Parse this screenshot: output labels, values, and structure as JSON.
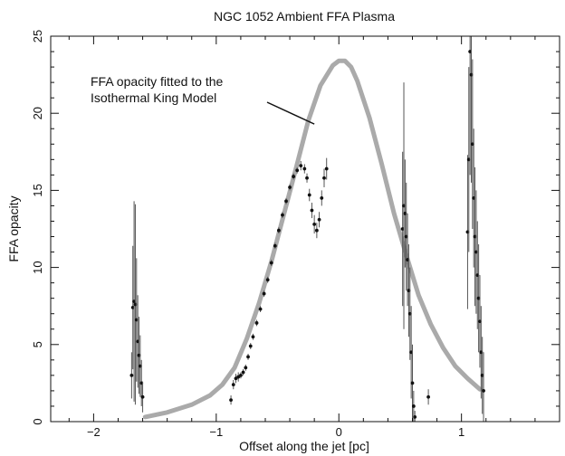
{
  "chart_data": {
    "type": "scatter",
    "title": "NGC 1052 Ambient FFA Plasma",
    "xlabel": "Offset along the jet [pc]",
    "ylabel": "FFA opacity",
    "xlim": [
      -2.35,
      1.8
    ],
    "ylim": [
      0,
      25
    ],
    "xticks": [
      -2,
      -1,
      0,
      1
    ],
    "yticks": [
      0,
      5,
      10,
      15,
      20,
      25
    ],
    "grid": false,
    "colors": {
      "model": "#aaaaaa",
      "data": "#111111"
    },
    "annotation": {
      "lines": [
        "FFA opacity fitted to the",
        "Isothermal King Model"
      ],
      "points_to": [
        -0.2,
        19.3
      ]
    },
    "series": [
      {
        "role": "model",
        "style": "thick gray line",
        "x": [
          -1.58,
          -1.4,
          -1.2,
          -1.05,
          -0.95,
          -0.85,
          -0.75,
          -0.65,
          -0.55,
          -0.45,
          -0.35,
          -0.25,
          -0.15,
          -0.05,
          0.0,
          0.05,
          0.1,
          0.15,
          0.25,
          0.35,
          0.45,
          0.55,
          0.65,
          0.75,
          0.85,
          0.95,
          1.05,
          1.15
        ],
        "values": [
          0.3,
          0.6,
          1.1,
          1.7,
          2.4,
          3.5,
          5.4,
          7.7,
          10.4,
          13.4,
          16.4,
          19.5,
          21.8,
          23.1,
          23.4,
          23.4,
          23.0,
          22.1,
          19.7,
          16.7,
          13.5,
          10.8,
          8.2,
          6.3,
          4.8,
          3.6,
          2.8,
          2.1
        ]
      },
      {
        "role": "data",
        "style": "points with error bars",
        "x": [
          -1.69,
          -1.68,
          -1.67,
          -1.66,
          -1.65,
          -1.64,
          -1.63,
          -1.62,
          -1.61,
          -1.6,
          -0.88,
          -0.86,
          -0.84,
          -0.82,
          -0.8,
          -0.78,
          -0.76,
          -0.74,
          -0.72,
          -0.7,
          -0.67,
          -0.64,
          -0.61,
          -0.58,
          -0.55,
          -0.52,
          -0.49,
          -0.46,
          -0.43,
          -0.4,
          -0.37,
          -0.34,
          -0.31,
          -0.28,
          -0.26,
          -0.24,
          -0.22,
          -0.2,
          -0.18,
          -0.16,
          -0.14,
          -0.12,
          -0.1,
          0.52,
          0.53,
          0.54,
          0.55,
          0.56,
          0.57,
          0.58,
          0.59,
          0.6,
          0.61,
          0.62,
          0.73,
          1.05,
          1.06,
          1.07,
          1.08,
          1.09,
          1.1,
          1.11,
          1.12,
          1.13,
          1.14,
          1.15,
          1.16,
          1.17,
          1.18
        ],
        "values": [
          3.0,
          7.4,
          7.8,
          7.6,
          6.6,
          5.2,
          4.3,
          3.6,
          2.5,
          1.6,
          1.4,
          2.4,
          2.8,
          2.9,
          3.0,
          3.2,
          3.5,
          4.2,
          4.9,
          5.5,
          6.4,
          7.3,
          8.3,
          9.2,
          10.3,
          11.4,
          12.4,
          13.4,
          14.3,
          15.2,
          15.9,
          16.3,
          16.6,
          16.4,
          15.8,
          14.7,
          13.7,
          12.8,
          12.4,
          13.1,
          14.5,
          15.8,
          16.4,
          12.5,
          14.0,
          13.5,
          12.0,
          10.5,
          8.5,
          7.0,
          4.5,
          2.5,
          1.0,
          0.3,
          1.6,
          12.3,
          17.0,
          24.0,
          22.5,
          18.0,
          14.5,
          12.0,
          11.0,
          9.5,
          8.0,
          6.5,
          4.5,
          3.0,
          2.0
        ],
        "error": [
          1.5,
          4.0,
          6.5,
          6.5,
          4.0,
          3.0,
          2.5,
          2.0,
          1.5,
          1.0,
          0.3,
          0.3,
          0.3,
          0.3,
          0.2,
          0.2,
          0.2,
          0.2,
          0.2,
          0.2,
          0.2,
          0.2,
          0.2,
          0.2,
          0.2,
          0.2,
          0.2,
          0.2,
          0.2,
          0.2,
          0.2,
          0.2,
          0.3,
          0.3,
          0.3,
          0.4,
          0.5,
          0.6,
          0.5,
          0.5,
          0.5,
          0.6,
          0.7,
          5.0,
          8.0,
          3.5,
          3.5,
          3.0,
          3.0,
          3.0,
          3.0,
          2.5,
          1.0,
          0.4,
          0.5,
          5.0,
          6.0,
          8.0,
          7.0,
          5.5,
          4.5,
          4.5,
          4.0,
          3.5,
          3.5,
          3.0,
          3.0,
          2.5,
          2.5
        ]
      }
    ]
  }
}
